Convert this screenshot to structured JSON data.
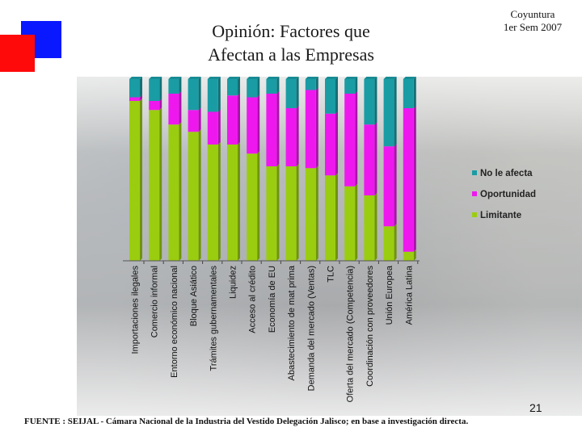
{
  "slide": {
    "title": "Opinión: Factores que\nAfectan a las  Empresas",
    "period": "Coyuntura\n1er Sem 2007",
    "page_number": "21",
    "source": "FUENTE :  SEIJAL - Cámara Nacional de la Industria del Vestido Delegación Jalisco;  en base a investigación directa."
  },
  "colors": {
    "accent_blue": "#0a18ff",
    "accent_red": "#ff0a0a"
  },
  "chart_data": {
    "type": "bar",
    "stacked": true,
    "percent_stacked": true,
    "ylim": [
      0,
      100
    ],
    "grid": false,
    "legend_position": "right",
    "categories": [
      "Importaciones ilegales",
      "Comercio informal",
      "Entorno económico nacional",
      "Bloque Asiático",
      "Trámites gubernamentales",
      "Liquidez",
      "Acceso al crédito",
      "Economía de EU",
      "Abastecimiento de mat prima",
      "Demanda del mercado (Ventas)",
      "TLC",
      "Oferta del mercado (Competencia)",
      "Coordinación con proveedores",
      "Unión Europea",
      "América Latina"
    ],
    "series": [
      {
        "name": "Limitante",
        "color": "#9acd10",
        "values": [
          88,
          83,
          75,
          71,
          64,
          64,
          59,
          52,
          52,
          51,
          47,
          41,
          36,
          19,
          5
        ]
      },
      {
        "name": "Oportunidad",
        "color": "#ee18ee",
        "values": [
          2,
          5,
          17,
          12,
          18,
          27,
          31,
          40,
          32,
          43,
          34,
          51,
          39,
          44,
          79
        ]
      },
      {
        "name": "No le afecta",
        "color": "#1a9ca4",
        "values": [
          10,
          12,
          8,
          17,
          18,
          9,
          10,
          8,
          16,
          6,
          19,
          8,
          25,
          37,
          16
        ]
      }
    ]
  }
}
